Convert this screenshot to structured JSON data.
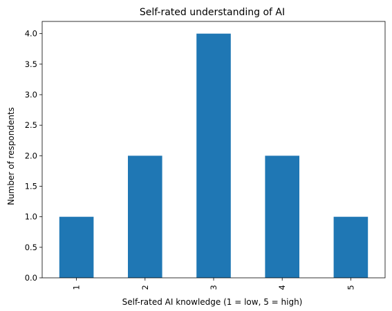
{
  "chart_data": {
    "type": "bar",
    "title": "Self-rated understanding of AI",
    "xlabel": "Self-rated AI knowledge (1 = low, 5 = high)",
    "ylabel": "Number of respondents",
    "categories": [
      "1",
      "2",
      "3",
      "4",
      "5"
    ],
    "values": [
      1,
      2,
      4,
      2,
      1
    ],
    "ylim": [
      0,
      4.2
    ],
    "yticks": [
      "0.0",
      "0.5",
      "1.0",
      "1.5",
      "2.0",
      "2.5",
      "3.0",
      "3.5",
      "4.0"
    ],
    "grid": false,
    "legend": "none",
    "bar_color": "#1f77b4",
    "x_tick_rotation": "vertical"
  }
}
